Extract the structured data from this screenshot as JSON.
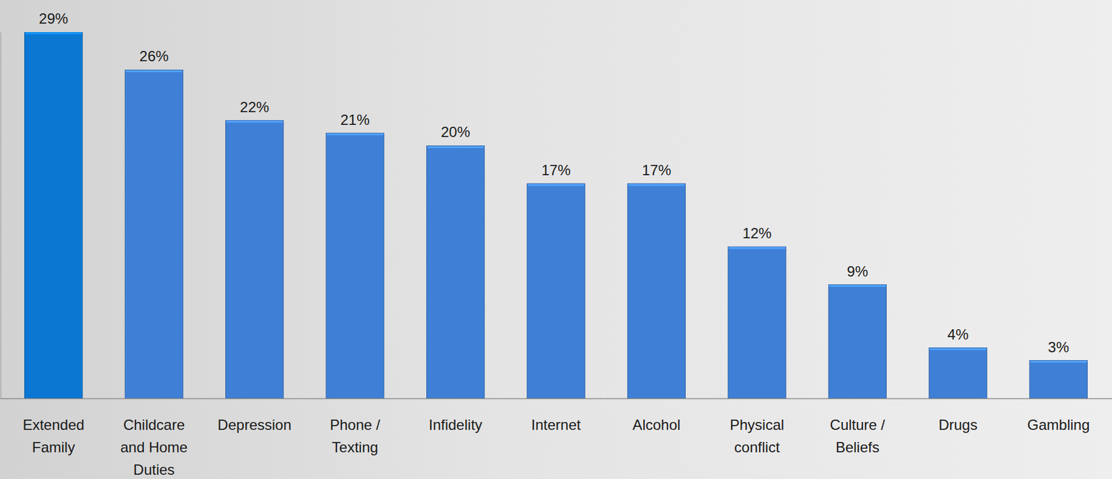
{
  "chart_data": {
    "type": "bar",
    "categories": [
      "Extended Family",
      "Childcare and Home Duties",
      "Depression",
      "Phone / Texting",
      "Infidelity",
      "Internet",
      "Alcohol",
      "Physical conflict",
      "Culture / Beliefs",
      "Drugs",
      "Gambling"
    ],
    "values": [
      29,
      26,
      22,
      21,
      20,
      17,
      17,
      12,
      9,
      4,
      3
    ],
    "value_labels": [
      "29%",
      "26%",
      "22%",
      "21%",
      "20%",
      "17%",
      "17%",
      "12%",
      "9%",
      "4%",
      "3%"
    ],
    "colors": [
      "#0b77d3",
      "#3f80d6",
      "#3f80d6",
      "#3f80d6",
      "#3f80d6",
      "#3f80d6",
      "#3f80d6",
      "#3f80d6",
      "#3f80d6",
      "#3f80d6",
      "#3f80d6"
    ],
    "ylim": [
      0,
      29
    ],
    "yticks": [],
    "grid": false,
    "data_labels": true,
    "tick_labels": "x"
  }
}
